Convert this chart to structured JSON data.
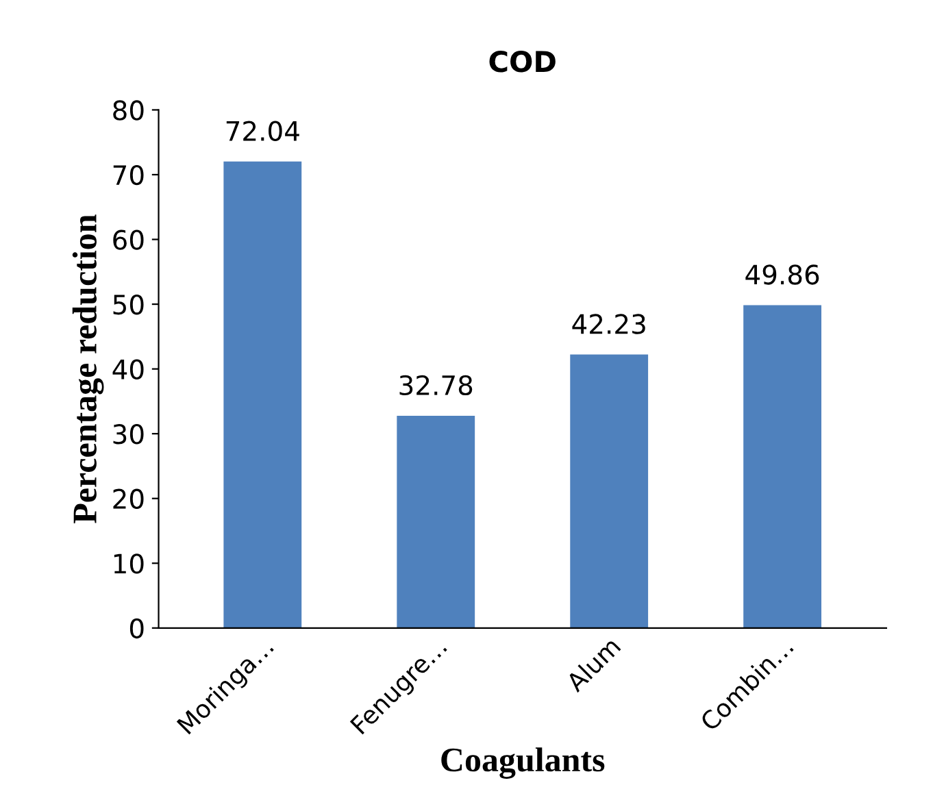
{
  "chart_data": {
    "type": "bar",
    "title": "COD",
    "xlabel": "Coagulants",
    "ylabel": "Percentage reduction",
    "categories": [
      "Moringa…",
      "Fenugre…",
      "Alum",
      "Combin…"
    ],
    "values": [
      72.04,
      32.78,
      42.23,
      49.86
    ],
    "color": "#4f81bd",
    "ylim": [
      0,
      80
    ],
    "yticks": [
      0,
      10,
      20,
      30,
      40,
      50,
      60,
      70,
      80
    ],
    "grid": false,
    "data_labels": true
  }
}
